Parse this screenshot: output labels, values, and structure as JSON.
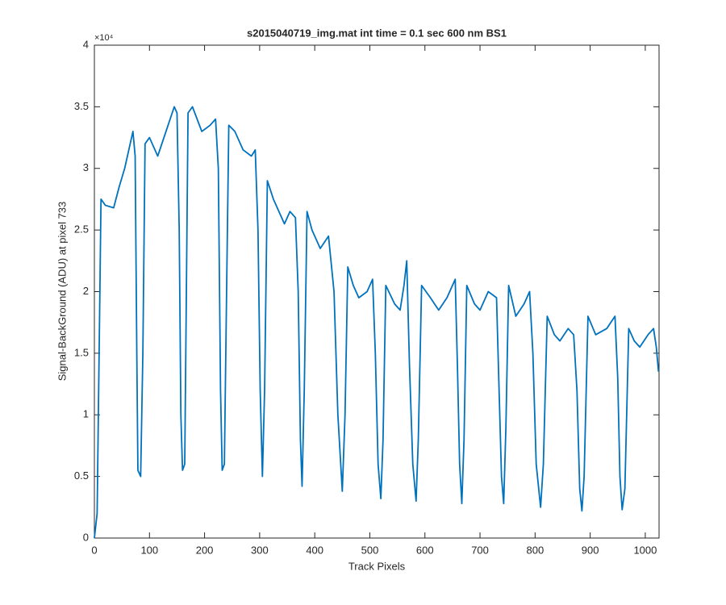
{
  "chart_data": {
    "type": "line",
    "title": "s2015040719_img.mat int time = 0.1 sec  600 nm BS1",
    "x_label": "Track Pixels",
    "y_label": "Signal-BackGround (ADU) at pixel 733",
    "y_exponent_label": "×10⁴",
    "color": "#0072bd",
    "xlim": [
      0,
      1025
    ],
    "xticks": [
      0,
      100,
      200,
      300,
      400,
      500,
      600,
      700,
      800,
      900,
      1000
    ],
    "ylim": [
      0,
      4
    ],
    "yticks": [
      0,
      0.5,
      1,
      1.5,
      2,
      2.5,
      3,
      3.5,
      4
    ],
    "grid": false,
    "x": [
      0,
      5,
      10,
      12,
      20,
      35,
      45,
      55,
      65,
      70,
      74,
      77,
      79,
      84,
      88,
      92,
      100,
      115,
      130,
      145,
      150,
      154,
      157,
      160,
      164,
      167,
      170,
      178,
      195,
      210,
      220,
      225,
      229,
      232,
      236,
      240,
      244,
      255,
      270,
      285,
      292,
      297,
      301,
      305,
      309,
      314,
      325,
      335,
      345,
      355,
      365,
      370,
      374,
      377,
      381,
      386,
      395,
      410,
      425,
      435,
      442,
      450,
      455,
      460,
      470,
      480,
      495,
      505,
      510,
      515,
      520,
      524,
      529,
      545,
      555,
      562,
      567,
      572,
      578,
      584,
      588,
      594,
      610,
      625,
      640,
      655,
      659,
      663,
      667,
      671,
      676,
      690,
      700,
      715,
      730,
      734,
      739,
      743,
      747,
      752,
      765,
      780,
      790,
      796,
      802,
      810,
      815,
      822,
      835,
      845,
      860,
      870,
      876,
      881,
      885,
      889,
      896,
      910,
      930,
      945,
      950,
      954,
      958,
      963,
      970,
      980,
      990,
      1005,
      1015,
      1020,
      1024
    ],
    "values": [
      0,
      0.2,
      2.0,
      2.75,
      2.7,
      2.68,
      2.85,
      3.0,
      3.2,
      3.3,
      3.1,
      1.5,
      0.55,
      0.5,
      1.5,
      3.2,
      3.25,
      3.1,
      3.3,
      3.5,
      3.45,
      2.5,
      1.0,
      0.55,
      0.6,
      2.0,
      3.45,
      3.5,
      3.3,
      3.35,
      3.4,
      3.0,
      1.2,
      0.55,
      0.6,
      2.0,
      3.35,
      3.3,
      3.15,
      3.1,
      3.15,
      2.5,
      1.2,
      0.5,
      1.2,
      2.9,
      2.75,
      2.65,
      2.55,
      2.65,
      2.6,
      2.0,
      0.8,
      0.42,
      1.2,
      2.65,
      2.5,
      2.35,
      2.45,
      2.0,
      1.0,
      0.38,
      1.0,
      2.2,
      2.05,
      1.95,
      2.0,
      2.1,
      1.5,
      0.6,
      0.32,
      0.8,
      2.05,
      1.9,
      1.85,
      2.05,
      2.25,
      1.4,
      0.6,
      0.3,
      0.8,
      2.05,
      1.95,
      1.85,
      1.95,
      2.1,
      1.4,
      0.6,
      0.28,
      0.8,
      2.05,
      1.9,
      1.85,
      2.0,
      1.95,
      1.3,
      0.5,
      0.28,
      0.9,
      2.05,
      1.8,
      1.9,
      2.0,
      1.5,
      0.6,
      0.25,
      0.6,
      1.8,
      1.65,
      1.6,
      1.7,
      1.65,
      1.2,
      0.4,
      0.22,
      0.5,
      1.8,
      1.65,
      1.7,
      1.8,
      1.3,
      0.5,
      0.23,
      0.4,
      1.7,
      1.6,
      1.55,
      1.65,
      1.7,
      1.55,
      1.35
    ]
  }
}
